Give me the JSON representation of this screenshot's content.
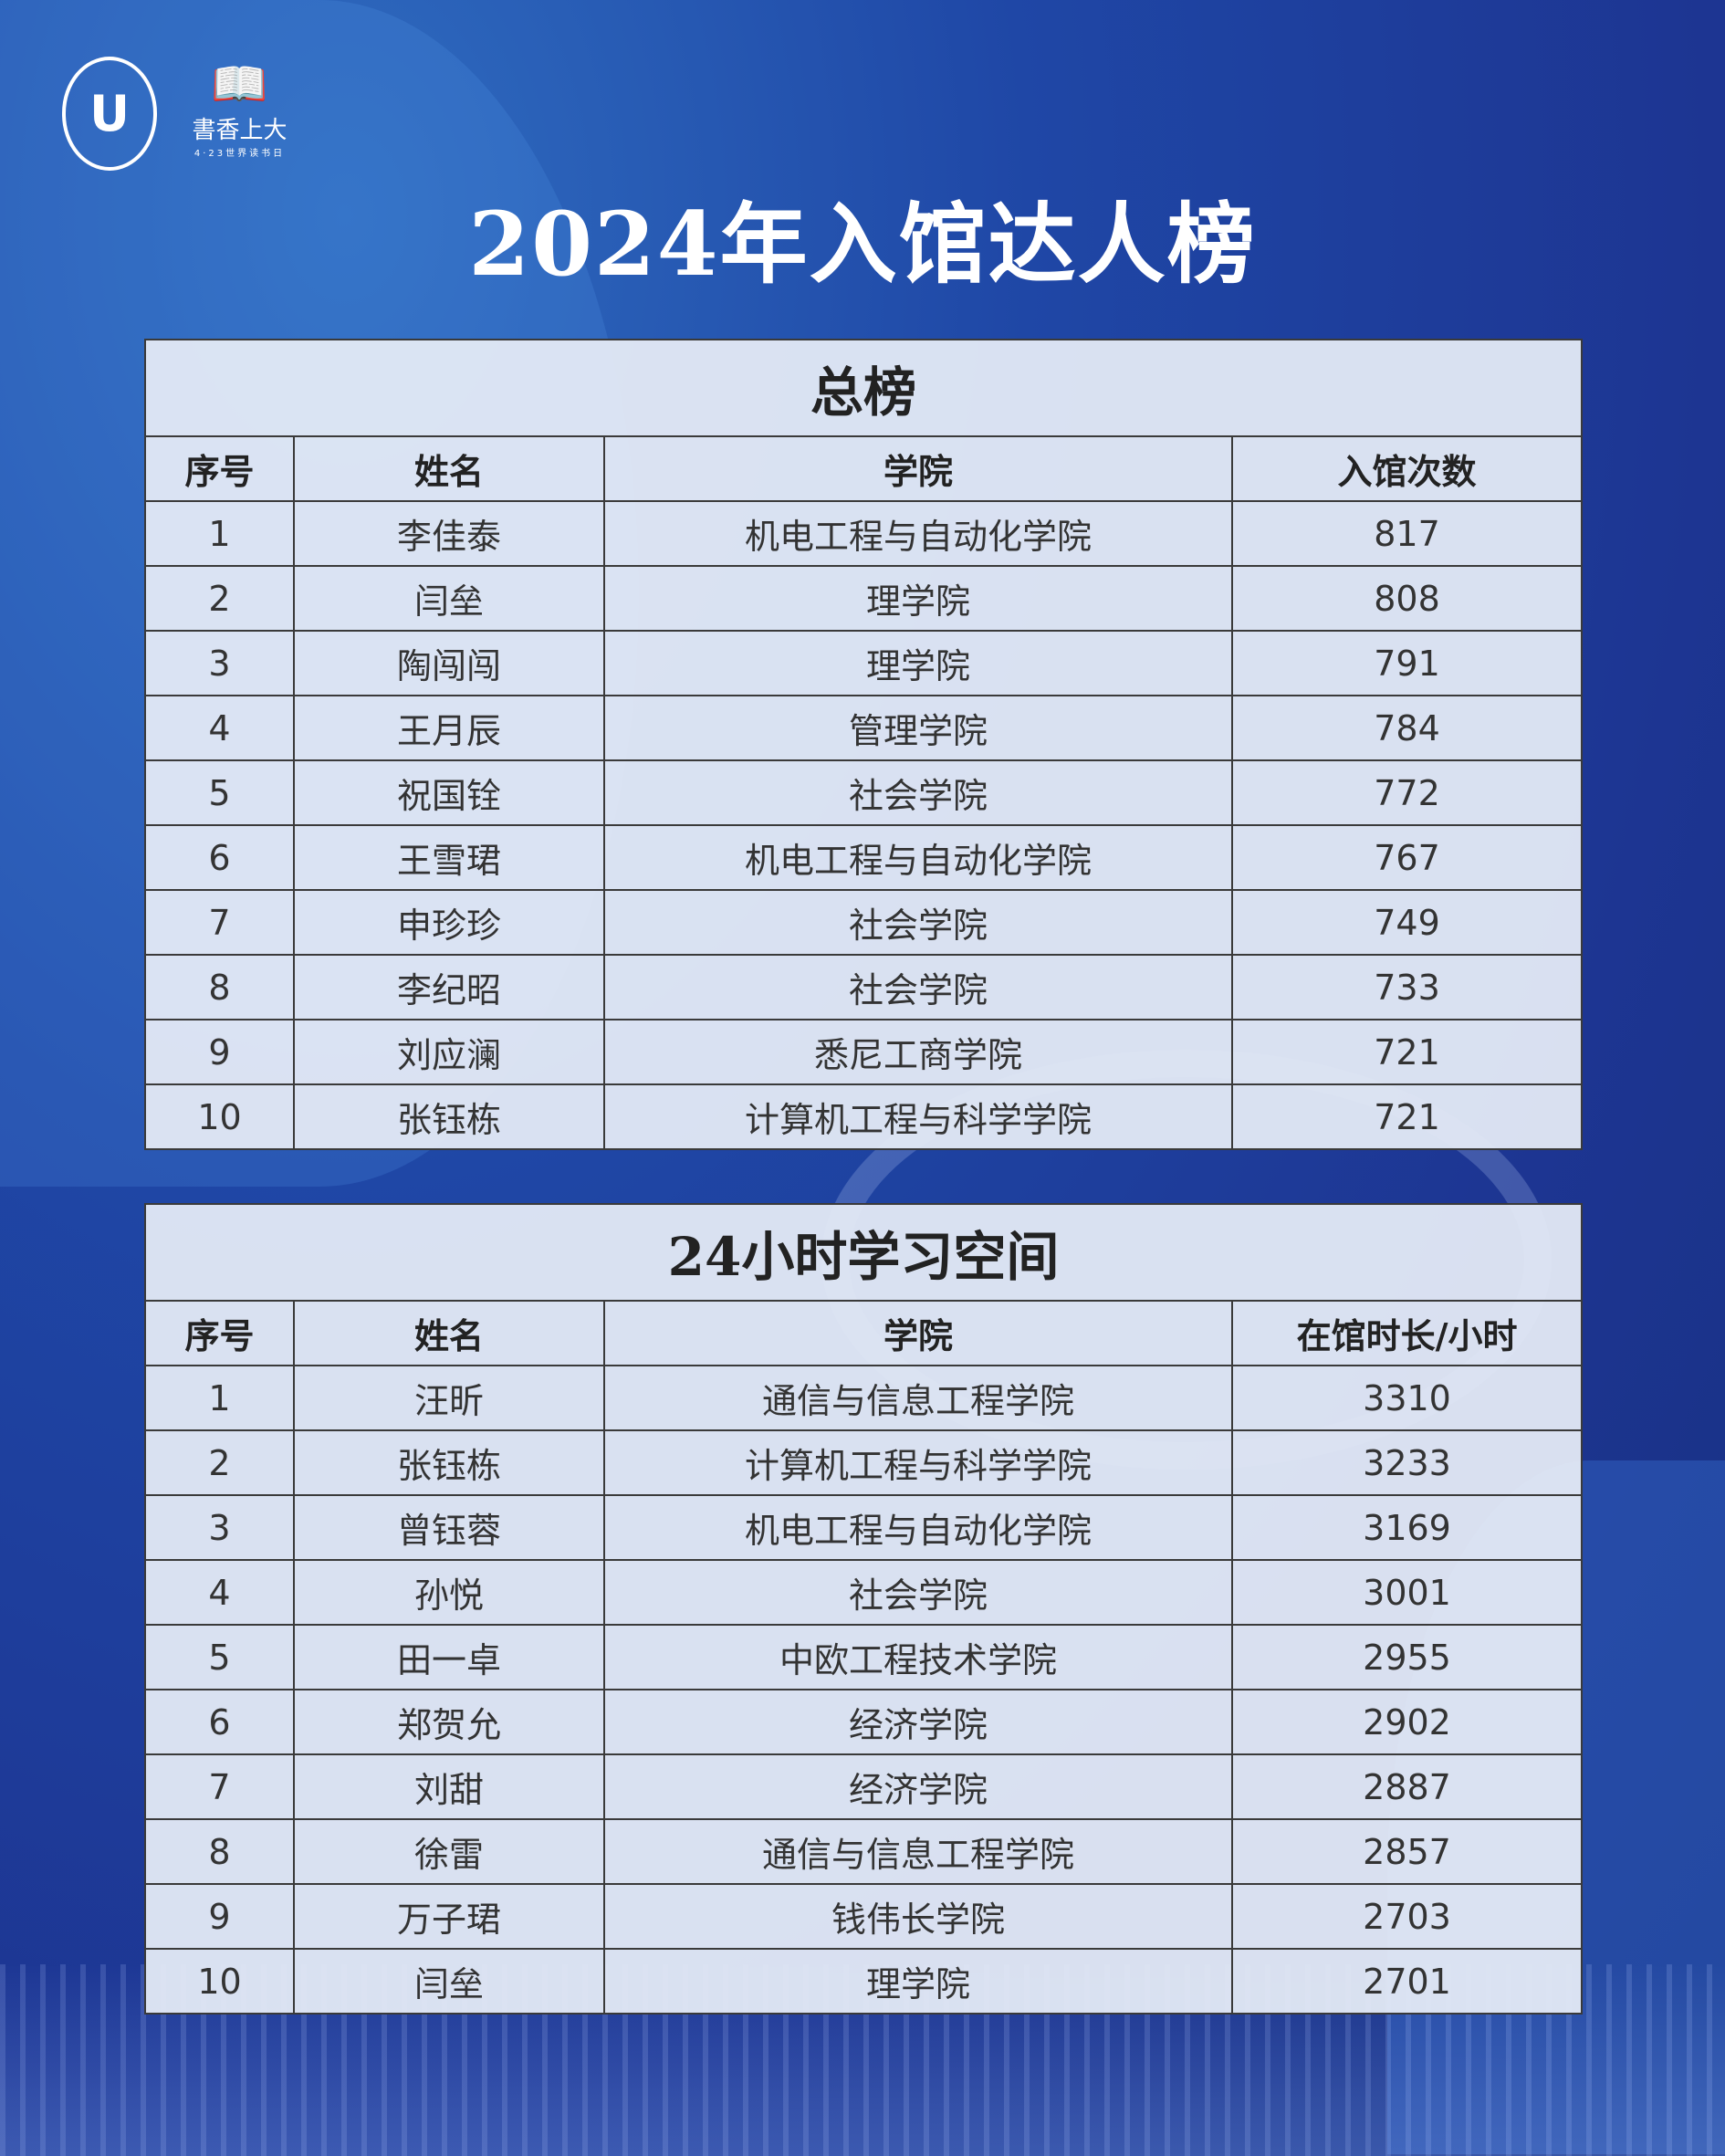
{
  "logos": {
    "university": "SHANGHAI UNIVERSITY 上海大学",
    "reading": "書香上大",
    "reading_sub": "4·23世界读书日"
  },
  "title": "2024年入馆达人榜",
  "tables": [
    {
      "title": "总榜",
      "headers": [
        "序号",
        "姓名",
        "学院",
        "入馆次数"
      ],
      "rows": [
        [
          "1",
          "李佳泰",
          "机电工程与自动化学院",
          "817"
        ],
        [
          "2",
          "闫垒",
          "理学院",
          "808"
        ],
        [
          "3",
          "陶闯闯",
          "理学院",
          "791"
        ],
        [
          "4",
          "王月辰",
          "管理学院",
          "784"
        ],
        [
          "5",
          "祝国铨",
          "社会学院",
          "772"
        ],
        [
          "6",
          "王雪珺",
          "机电工程与自动化学院",
          "767"
        ],
        [
          "7",
          "申珍珍",
          "社会学院",
          "749"
        ],
        [
          "8",
          "李纪昭",
          "社会学院",
          "733"
        ],
        [
          "9",
          "刘应澜",
          "悉尼工商学院",
          "721"
        ],
        [
          "10",
          "张钰栋",
          "计算机工程与科学学院",
          "721"
        ]
      ]
    },
    {
      "title": "24小时学习空间",
      "headers": [
        "序号",
        "姓名",
        "学院",
        "在馆时长/小时"
      ],
      "rows": [
        [
          "1",
          "汪昕",
          "通信与信息工程学院",
          "3310"
        ],
        [
          "2",
          "张钰栋",
          "计算机工程与科学学院",
          "3233"
        ],
        [
          "3",
          "曾钰蓉",
          "机电工程与自动化学院",
          "3169"
        ],
        [
          "4",
          "孙悦",
          "社会学院",
          "3001"
        ],
        [
          "5",
          "田一卓",
          "中欧工程技术学院",
          "2955"
        ],
        [
          "6",
          "郑贺允",
          "经济学院",
          "2902"
        ],
        [
          "7",
          "刘甜",
          "经济学院",
          "2887"
        ],
        [
          "8",
          "徐雷",
          "通信与信息工程学院",
          "2857"
        ],
        [
          "9",
          "万子珺",
          "钱伟长学院",
          "2703"
        ],
        [
          "10",
          "闫垒",
          "理学院",
          "2701"
        ]
      ]
    }
  ]
}
